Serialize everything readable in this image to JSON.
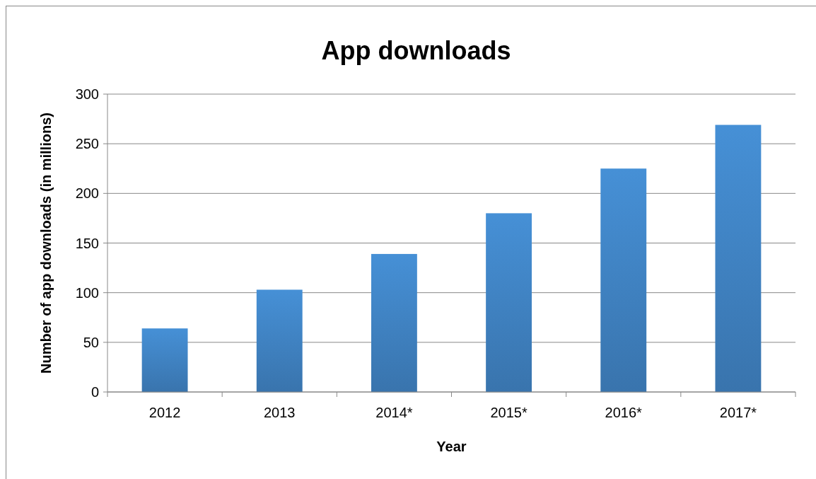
{
  "chart_data": {
    "type": "bar",
    "title": "App downloads",
    "xlabel": "Year",
    "ylabel": "Number of app downloads (in millions)",
    "categories": [
      "2012",
      "2013",
      "2014*",
      "2015*",
      "2016*",
      "2017*"
    ],
    "values": [
      64,
      103,
      139,
      180,
      225,
      269
    ],
    "color": "#4690d6",
    "ylim": [
      0,
      300
    ],
    "yticks": [
      0,
      50,
      100,
      150,
      200,
      250,
      300
    ],
    "grid": "y"
  }
}
